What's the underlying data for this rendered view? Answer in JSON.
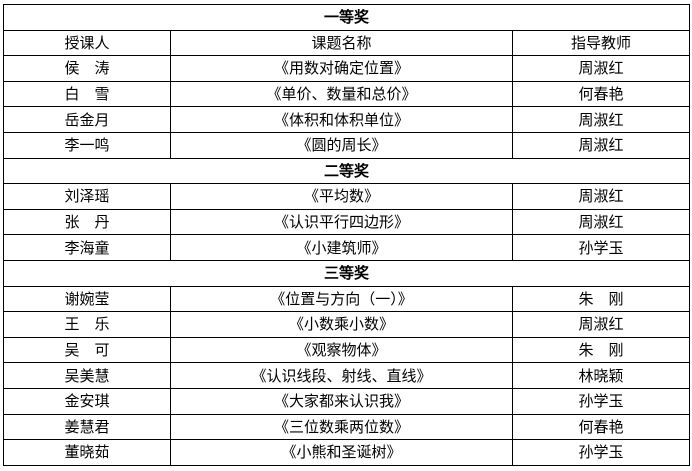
{
  "headers": [
    "授课人",
    "课题名称",
    "指导教师"
  ],
  "sections": [
    {
      "title": "一等奖",
      "rows": [
        [
          "侯　涛",
          "《用数对确定位置》",
          "周淑红"
        ],
        [
          "白　雪",
          "《单价、数量和总价》",
          "何春艳"
        ],
        [
          "岳金月",
          "《体积和体积单位》",
          "周淑红"
        ],
        [
          "李一鸣",
          "《圆的周长》",
          "周淑红"
        ]
      ]
    },
    {
      "title": "二等奖",
      "rows": [
        [
          "刘泽瑶",
          "《平均数》",
          "周淑红"
        ],
        [
          "张　丹",
          "《认识平行四边形》",
          "周淑红"
        ],
        [
          "李海童",
          "《小建筑师》",
          "孙学玉"
        ]
      ]
    },
    {
      "title": "三等奖",
      "rows": [
        [
          "谢婉莹",
          "《位置与方向（一）》",
          "朱　刚"
        ],
        [
          "王　乐",
          "《小数乘小数》",
          "周淑红"
        ],
        [
          "吴　可",
          "《观察物体》",
          "朱　刚"
        ],
        [
          "吴美慧",
          "《认识线段、射线、直线》",
          "林晓颖"
        ],
        [
          "金安琪",
          "《大家都来认识我》",
          "孙学玉"
        ],
        [
          "姜慧君",
          "《三位数乘两位数》",
          "何春艳"
        ],
        [
          "董晓茹",
          "《小熊和圣诞树》",
          "孙学玉"
        ]
      ]
    }
  ]
}
